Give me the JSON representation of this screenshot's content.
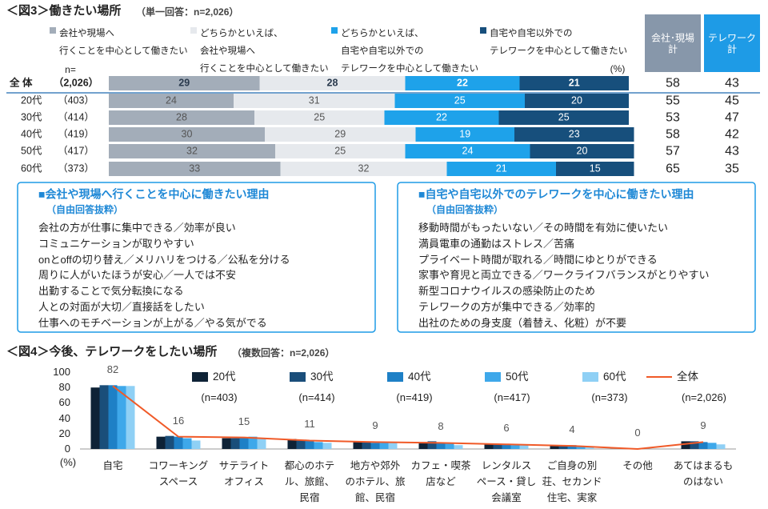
{
  "chart_data": [
    {
      "type": "stacked-bar-horizontal",
      "title": "＜図3＞働きたい場所",
      "subtitle": "（単一回答：n=2,026）",
      "n_header": "n=",
      "unit": "(%)",
      "categories": [
        "全 体",
        "20代",
        "30代",
        "40代",
        "50代",
        "60代"
      ],
      "sample_sizes": [
        "（2,026）",
        "（403）",
        "（414）",
        "（419）",
        "（417）",
        "（373）"
      ],
      "series": [
        {
          "name": "会社や現場へ\n行くことを中心として働きたい",
          "color": "#a3adb9",
          "values": [
            29,
            24,
            28,
            30,
            32,
            33
          ]
        },
        {
          "name": "どちらかといえば、\n会社や現場へ\n行くことを中心として働きたい",
          "color": "#e6e9ed",
          "values": [
            28,
            31,
            25,
            29,
            25,
            32
          ]
        },
        {
          "name": "どちらかといえば、\n自宅や自宅以外での\nテレワークを中心として働きたい",
          "color": "#1ea2ea",
          "values": [
            22,
            25,
            22,
            19,
            24,
            21
          ]
        },
        {
          "name": "自宅や自宅以外での\nテレワークを中心として働きたい",
          "color": "#174f7c",
          "values": [
            21,
            20,
            25,
            23,
            20,
            15
          ]
        }
      ],
      "totals": [
        {
          "name": "会社･現場\n計",
          "color": "#8797aa",
          "values": [
            58,
            55,
            53,
            58,
            57,
            65
          ]
        },
        {
          "name": "テレワーク\n計",
          "color": "#1e9be6",
          "values": [
            43,
            45,
            47,
            42,
            43,
            35
          ]
        }
      ]
    },
    {
      "type": "bar-line",
      "title": "＜図4＞今後、テレワークをしたい場所",
      "subtitle": "（複数回答：n=2,026）",
      "y_label": "(%)",
      "categories": [
        "自宅",
        "コワーキング\nスペース",
        "サテライト\nオフィス",
        "都心のホテ\nル、旅館、\n民宿",
        "地方や郊外\nのホテル、旅\n館、民宿",
        "カフェ・喫茶\n店など",
        "レンタルス\nペース・貸し\n会議室",
        "ご自身の別\n荘、セカンド\n住宅、実家",
        "その他",
        "あてはまるも\nのはない"
      ],
      "ylim": [
        0,
        100
      ],
      "yticks": [
        0,
        20,
        40,
        60,
        80,
        100
      ],
      "series": [
        {
          "name": "20代",
          "sample": "(n=403)",
          "color": "#0e2236",
          "values": [
            80,
            16,
            14,
            13,
            9,
            9,
            6,
            4,
            0,
            10
          ]
        },
        {
          "name": "30代",
          "sample": "(n=414)",
          "color": "#1a4e7a",
          "values": [
            83,
            17,
            14,
            12,
            9,
            10,
            6,
            5,
            0,
            10
          ]
        },
        {
          "name": "40代",
          "sample": "(n=419)",
          "color": "#1e80c6",
          "values": [
            83,
            16,
            15,
            11,
            8,
            8,
            6,
            5,
            0,
            9
          ]
        },
        {
          "name": "50代",
          "sample": "(n=417)",
          "color": "#3ea8ea",
          "values": [
            82,
            14,
            16,
            9,
            8,
            7,
            5,
            3,
            0,
            8
          ]
        },
        {
          "name": "60代",
          "sample": "(n=373)",
          "color": "#8fd0f5",
          "values": [
            82,
            11,
            13,
            8,
            8,
            5,
            5,
            3,
            0,
            6
          ]
        }
      ],
      "line": {
        "name": "全体",
        "sample": "(n=2,026)",
        "color": "#f05a28",
        "values": [
          82,
          16,
          15,
          11,
          9,
          8,
          6,
          4,
          0,
          9
        ]
      }
    }
  ],
  "reasons": [
    {
      "title": "■会社や現場へ行くことを中心に働きたい理由",
      "subtitle": "（自由回答抜粋）",
      "items": [
        "会社の方が仕事に集中できる／効率が良い",
        "コミュニケーションが取りやすい",
        "onとoffの切り替え／メリハリをつける／公私を分ける",
        "周りに人がいたほうが安心／一人では不安",
        "出勤することで気分転換になる",
        "人との対面が大切／直接話をしたい",
        "仕事へのモチベーションが上がる／やる気がでる"
      ]
    },
    {
      "title": "■自宅や自宅以外でのテレワークを中心に働きたい理由",
      "subtitle": "（自由回答抜粋）",
      "items": [
        "移動時間がもったいない／その時間を有効に使いたい",
        "満員電車の通勤はストレス／苦痛",
        "プライベート時間が取れる／時間にゆとりができる",
        "家事や育児と両立できる／ワークライフバランスがとりやすい",
        "新型コロナウイルスの感染防止のため",
        "テレワークの方が集中できる／効率的",
        "出社のための身支度（着替え、化粧）が不要"
      ]
    }
  ]
}
